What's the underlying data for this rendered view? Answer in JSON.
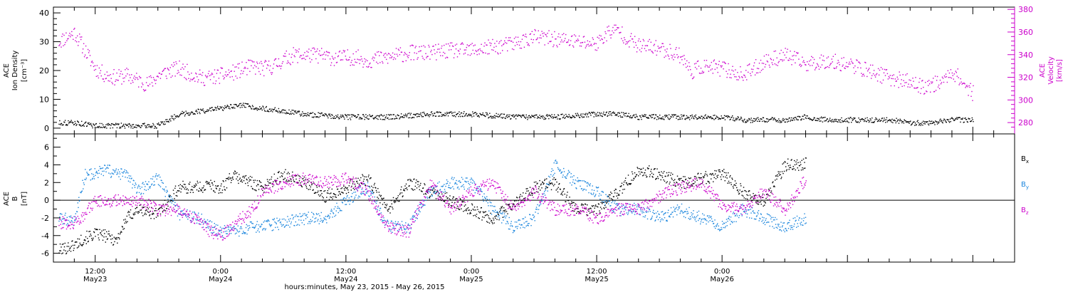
{
  "chart_data": [
    {
      "type": "scatter",
      "panel": "top",
      "left_axis_label": [
        "ACE",
        "Ion Density",
        "[cm⁻³]"
      ],
      "right_axis_label": [
        "ACE",
        "Velocity",
        "[km/s]"
      ],
      "left_ylim": [
        -2,
        42
      ],
      "right_ylim": [
        270,
        382
      ],
      "left_ticks": [
        "0",
        "10",
        "20",
        "30",
        "40"
      ],
      "right_ticks": [
        "280",
        "300",
        "320",
        "340",
        "360",
        "380"
      ],
      "xlim_hours": [
        -4,
        88
      ],
      "series": [
        {
          "axis": "right",
          "color": "#cc00cc",
          "x_hours": [
            -3.5,
            -2,
            -1,
            0,
            1,
            2,
            3,
            4,
            5,
            6,
            7,
            8,
            9,
            10,
            11,
            12,
            13,
            14,
            15,
            16,
            17,
            18,
            19,
            20,
            21,
            22,
            23,
            24,
            25,
            26,
            28,
            30,
            32,
            34,
            36,
            38,
            40,
            42,
            44,
            46,
            48,
            49,
            50,
            51,
            52,
            54,
            56,
            57,
            58,
            60,
            62,
            64,
            66,
            68,
            70,
            72,
            74,
            76,
            78,
            79,
            80,
            81,
            82,
            84
          ],
          "y": [
            352,
            360,
            344,
            328,
            322,
            320,
            322,
            318,
            314,
            322,
            326,
            328,
            324,
            320,
            320,
            322,
            324,
            327,
            330,
            328,
            330,
            336,
            340,
            340,
            340,
            339,
            337,
            338,
            338,
            335,
            338,
            342,
            342,
            344,
            344,
            347,
            350,
            356,
            354,
            352,
            350,
            360,
            362,
            354,
            348,
            346,
            340,
            325,
            330,
            328,
            322,
            334,
            340,
            332,
            335,
            332,
            326,
            320,
            316,
            312,
            314,
            316,
            326,
            306
          ]
        },
        {
          "axis": "left",
          "color": "#000000",
          "x_hours": [
            -3.5,
            -2,
            0,
            2,
            4,
            6,
            7,
            8,
            10,
            12,
            14,
            16,
            18,
            20,
            24,
            28,
            32,
            36,
            40,
            44,
            48,
            50,
            52,
            54,
            56,
            58,
            60,
            62,
            64,
            66,
            68,
            70,
            72,
            74,
            76,
            78,
            80,
            82,
            84
          ],
          "y": [
            2,
            2,
            1,
            1,
            1,
            1,
            3,
            5,
            6,
            7,
            8,
            7,
            6,
            5,
            4,
            4,
            5,
            5,
            4,
            4,
            5,
            5,
            4,
            4,
            4,
            4,
            4,
            3,
            3,
            3,
            4,
            3,
            3,
            3,
            3,
            2,
            2,
            3,
            3
          ]
        }
      ]
    },
    {
      "type": "scatter",
      "panel": "bottom",
      "left_axis_label": [
        "ACE",
        "B",
        "[nT]"
      ],
      "ylim": [
        -7,
        7.5
      ],
      "y_ticks": [
        "-6",
        "-4",
        "-2",
        "0",
        "2",
        "4",
        "6"
      ],
      "xlim_hours": [
        -4,
        88
      ],
      "x_tick_labels": [
        {
          "hours": 0,
          "line1": "12:00",
          "line2": "May23"
        },
        {
          "hours": 12,
          "line1": "0:00",
          "line2": "May24"
        },
        {
          "hours": 24,
          "line1": "12:00",
          "line2": "May24"
        },
        {
          "hours": 36,
          "line1": "0:00",
          "line2": "May25"
        },
        {
          "hours": 48,
          "line1": "12:00",
          "line2": "May25"
        },
        {
          "hours": 60,
          "line1": "0:00",
          "line2": "May26"
        }
      ],
      "xlabel": "hours:minutes, May 23, 2015 - May 26, 2015",
      "series": [
        {
          "name": "Bx",
          "label_main": "B",
          "label_sub": "x",
          "color": "#000000",
          "x_hours": [
            -3.5,
            -2,
            -1,
            0,
            1,
            2,
            3,
            4,
            6,
            8,
            10,
            11,
            12,
            13,
            14,
            15,
            16,
            18,
            20,
            22,
            24,
            26,
            28,
            30,
            32,
            34,
            36,
            38,
            40,
            42,
            44,
            46,
            48,
            50,
            52,
            54,
            56,
            58,
            60,
            62,
            64,
            66,
            68
          ],
          "y": [
            -5.6,
            -5,
            -4.2,
            -3.8,
            -4,
            -4.5,
            -2,
            -1,
            -1.5,
            1.5,
            1.5,
            1.8,
            1.3,
            2.8,
            2.5,
            2,
            1.5,
            3,
            2,
            0.5,
            1.5,
            2.5,
            -1,
            2,
            1,
            0,
            -1,
            -2,
            -0.5,
            1.5,
            2,
            -1,
            -1,
            1,
            3.5,
            3,
            2,
            2.5,
            3,
            1,
            0,
            4,
            4.2
          ]
        },
        {
          "name": "By",
          "label_main": "B",
          "label_sub": "y",
          "color": "#1a85dd",
          "x_hours": [
            -3.5,
            -2,
            -1,
            0,
            1,
            2,
            3,
            4,
            6,
            8,
            10,
            11,
            12,
            13,
            14,
            15,
            16,
            18,
            20,
            22,
            24,
            26,
            28,
            30,
            32,
            34,
            36,
            38,
            40,
            42,
            44,
            46,
            48,
            50,
            52,
            54,
            56,
            58,
            60,
            62,
            64,
            66,
            68
          ],
          "y": [
            -2,
            -2.2,
            3,
            3,
            3.5,
            3,
            3,
            1,
            2.5,
            -1.5,
            -2,
            -3,
            -3.5,
            -3.5,
            -3.5,
            -3,
            -3,
            -2.5,
            -2,
            -2,
            0,
            1.5,
            -3,
            -3,
            1,
            2,
            2,
            -1,
            -3,
            -2,
            4,
            2,
            1,
            -1,
            -1,
            -2,
            -1,
            -2,
            -3,
            -1,
            -2,
            -3,
            -2
          ]
        },
        {
          "name": "Bz",
          "label_main": "B",
          "label_sub": "z",
          "color": "#cc00cc",
          "x_hours": [
            -3.5,
            -2,
            -1,
            0,
            1,
            2,
            3,
            4,
            6,
            8,
            10,
            11,
            12,
            13,
            14,
            15,
            16,
            18,
            20,
            22,
            24,
            26,
            28,
            30,
            32,
            34,
            36,
            38,
            40,
            42,
            44,
            46,
            48,
            50,
            52,
            54,
            56,
            58,
            60,
            62,
            64,
            66,
            68
          ],
          "y": [
            -2.5,
            -2.5,
            -1.5,
            0,
            0,
            0,
            0,
            0,
            -1,
            -1,
            -2.5,
            -3.5,
            -4,
            -3,
            -2,
            -1,
            1,
            2,
            2.5,
            2,
            2.5,
            1,
            -3,
            -3.5,
            2,
            -1,
            1,
            2,
            -1,
            1,
            -1,
            -1,
            -2,
            -1,
            -1,
            0.5,
            1.5,
            2,
            -0.5,
            -1,
            1,
            -1,
            2.5
          ]
        }
      ]
    }
  ]
}
